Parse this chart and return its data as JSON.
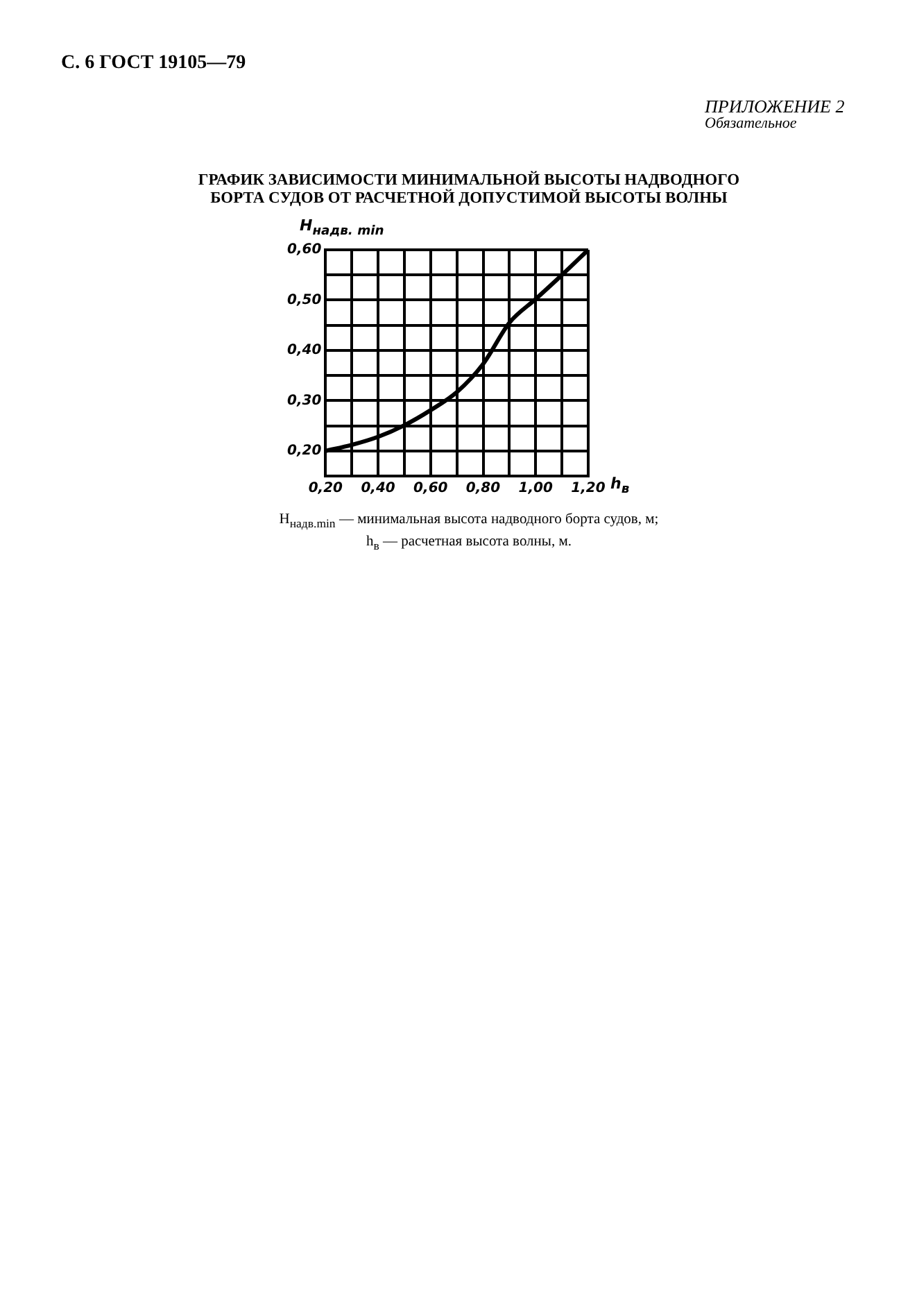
{
  "chart_data": {
    "type": "line",
    "title": "ГРАФИК ЗАВИСИМОСТИ МИНИМАЛЬНОЙ ВЫСОТЫ НАДВОДНОГО БОРТА СУДОВ ОТ РАСЧЕТНОЙ ДОПУСТИМОЙ ВЫСОТЫ ВОЛНЫ",
    "xlabel": "h$_{в}$",
    "ylabel": "H$_{надв. min}$",
    "annotations": [
      "С. 6 ГОСТ 19105—79",
      "ПРИЛОЖЕНИЕ 2",
      "Обязательное",
      "H$_{надв.min}$ — минимальная высота надводного борта судов, м;",
      "h$_{в}$ — расчетная высота волны, м."
    ],
    "x": [
      0.2,
      0.3,
      0.4,
      0.5,
      0.6,
      0.7,
      0.8,
      0.9,
      1.0,
      1.1,
      1.2
    ],
    "series": [
      {
        "color": "#000000",
        "values": [
          0.2,
          0.212,
          0.228,
          0.251,
          0.281,
          0.317,
          0.373,
          0.455,
          0.502,
          0.55,
          0.6
        ]
      }
    ],
    "xlim": [
      0.2,
      1.2
    ],
    "ylim": [
      0.15,
      0.6
    ],
    "xticks": [
      {
        "value": 0.2,
        "label": "0,20"
      },
      {
        "value": 0.3,
        "label": null
      },
      {
        "value": 0.4,
        "label": "0,40"
      },
      {
        "value": 0.5,
        "label": null
      },
      {
        "value": 0.6,
        "label": "0,60"
      },
      {
        "value": 0.7,
        "label": null
      },
      {
        "value": 0.8,
        "label": "0,80"
      },
      {
        "value": 0.9,
        "label": null
      },
      {
        "value": 1.0,
        "label": "1,00"
      },
      {
        "value": 1.1,
        "label": null
      },
      {
        "value": 1.2,
        "label": "1,20"
      }
    ],
    "yticks": [
      {
        "value": 0.15,
        "label": null
      },
      {
        "value": 0.2,
        "label": "0,20"
      },
      {
        "value": 0.25,
        "label": null
      },
      {
        "value": 0.3,
        "label": "0,30"
      },
      {
        "value": 0.35,
        "label": null
      },
      {
        "value": 0.4,
        "label": "0,40"
      },
      {
        "value": 0.45,
        "label": null
      },
      {
        "value": 0.5,
        "label": "0,50"
      },
      {
        "value": 0.55,
        "label": null
      },
      {
        "value": 0.6,
        "label": "0,60"
      }
    ],
    "grid": true,
    "legend": false,
    "marker": "none",
    "line_style": "solid"
  }
}
